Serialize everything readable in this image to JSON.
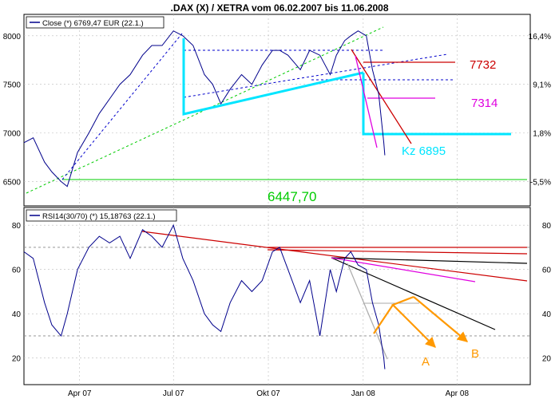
{
  "title": ".DAX (X) / XETRA vom 06.02.2007 bis 11.06.2008",
  "x_ticks": [
    "Apr 07",
    "Jul 07",
    "Okt 07",
    "Jan 08",
    "Apr 08"
  ],
  "price_panel": {
    "legend": "Close (*) 6769,47 EUR (22.1.)",
    "y_ticks": [
      6500,
      7000,
      7500,
      8000
    ],
    "pct_ticks": [
      "16,4%",
      "9,1%",
      "1,8%",
      "-5,5%"
    ],
    "annotations": {
      "level_7732": "7732",
      "level_7314": "7314",
      "level_6895": "Kz 6895",
      "level_6447": "6447,70"
    }
  },
  "rsi_panel": {
    "legend": "RSI14(30/70) (*) 15,18763 (22.1.)",
    "y_ticks": [
      20,
      40,
      60,
      80
    ],
    "labels": {
      "a": "A",
      "b": "B"
    }
  },
  "colors": {
    "price_line": "#00008b",
    "cyan": "#00e5ff",
    "red": "#cc0000",
    "magenta": "#e000e0",
    "green": "#00cc00",
    "orange": "#ff9900",
    "grey": "#aaaaaa"
  },
  "chart_data": [
    {
      "type": "line",
      "title": ".DAX (X) / XETRA vom 06.02.2007 bis 11.06.2008",
      "ylim": [
        6250,
        8220
      ],
      "x_ticks": [
        "Apr 07",
        "Jul 07",
        "Okt 07",
        "Jan 08",
        "Apr 08"
      ],
      "series": [
        {
          "name": "Close (*) 6769,47 EUR (22.1.)",
          "x": [
            "2007-02-06",
            "2007-02-15",
            "2007-02-26",
            "2007-03-05",
            "2007-03-14",
            "2007-03-20",
            "2007-03-30",
            "2007-04-10",
            "2007-04-20",
            "2007-04-30",
            "2007-05-10",
            "2007-05-20",
            "2007-06-01",
            "2007-06-10",
            "2007-06-20",
            "2007-07-01",
            "2007-07-10",
            "2007-07-20",
            "2007-07-31",
            "2007-08-08",
            "2007-08-16",
            "2007-08-25",
            "2007-09-05",
            "2007-09-15",
            "2007-09-25",
            "2007-10-05",
            "2007-10-12",
            "2007-10-20",
            "2007-11-01",
            "2007-11-10",
            "2007-11-20",
            "2007-11-30",
            "2007-12-06",
            "2007-12-14",
            "2007-12-20",
            "2007-12-27",
            "2008-01-04",
            "2008-01-10",
            "2008-01-16",
            "2008-01-21",
            "2008-01-22"
          ],
          "values": [
            6900,
            6950,
            6700,
            6600,
            6500,
            6450,
            6800,
            7000,
            7200,
            7350,
            7500,
            7600,
            7800,
            7900,
            7900,
            8050,
            8000,
            7900,
            7600,
            7500,
            7300,
            7450,
            7600,
            7500,
            7700,
            7850,
            7850,
            7800,
            7650,
            7850,
            7800,
            7600,
            7800,
            7950,
            8000,
            8050,
            8000,
            7650,
            7400,
            6900,
            6770
          ]
        }
      ],
      "levels": [
        {
          "label": "7732",
          "value": 7732
        },
        {
          "label": "7314",
          "value": 7314
        },
        {
          "label": "Kz 6895",
          "value": 6895
        },
        {
          "label": "6447,70",
          "value": 6447.7
        }
      ],
      "secondary_axis": [
        "16,4%",
        "9,1%",
        "1,8%",
        "-5,5%"
      ]
    },
    {
      "type": "line",
      "ylim": [
        8,
        88
      ],
      "x_ticks": [
        "Apr 07",
        "Jul 07",
        "Okt 07",
        "Jan 08",
        "Apr 08"
      ],
      "series": [
        {
          "name": "RSI14(30/70) (*) 15,18763 (22.1.)",
          "x": [
            "2007-02-06",
            "2007-02-15",
            "2007-02-26",
            "2007-03-05",
            "2007-03-14",
            "2007-03-20",
            "2007-03-30",
            "2007-04-10",
            "2007-04-20",
            "2007-04-30",
            "2007-05-10",
            "2007-05-20",
            "2007-06-01",
            "2007-06-10",
            "2007-06-20",
            "2007-07-01",
            "2007-07-10",
            "2007-07-20",
            "2007-07-31",
            "2007-08-08",
            "2007-08-16",
            "2007-08-25",
            "2007-09-05",
            "2007-09-15",
            "2007-09-25",
            "2007-10-05",
            "2007-10-12",
            "2007-10-20",
            "2007-11-01",
            "2007-11-10",
            "2007-11-20",
            "2007-11-30",
            "2007-12-06",
            "2007-12-14",
            "2007-12-20",
            "2007-12-27",
            "2008-01-04",
            "2008-01-10",
            "2008-01-16",
            "2008-01-21",
            "2008-01-22"
          ],
          "values": [
            68,
            65,
            45,
            35,
            30,
            40,
            60,
            70,
            75,
            72,
            75,
            65,
            78,
            75,
            70,
            80,
            65,
            55,
            40,
            35,
            32,
            45,
            55,
            50,
            55,
            68,
            70,
            60,
            45,
            55,
            30,
            60,
            50,
            65,
            68,
            62,
            60,
            45,
            35,
            20,
            15
          ]
        }
      ],
      "reference_lines": [
        30,
        70
      ]
    }
  ]
}
